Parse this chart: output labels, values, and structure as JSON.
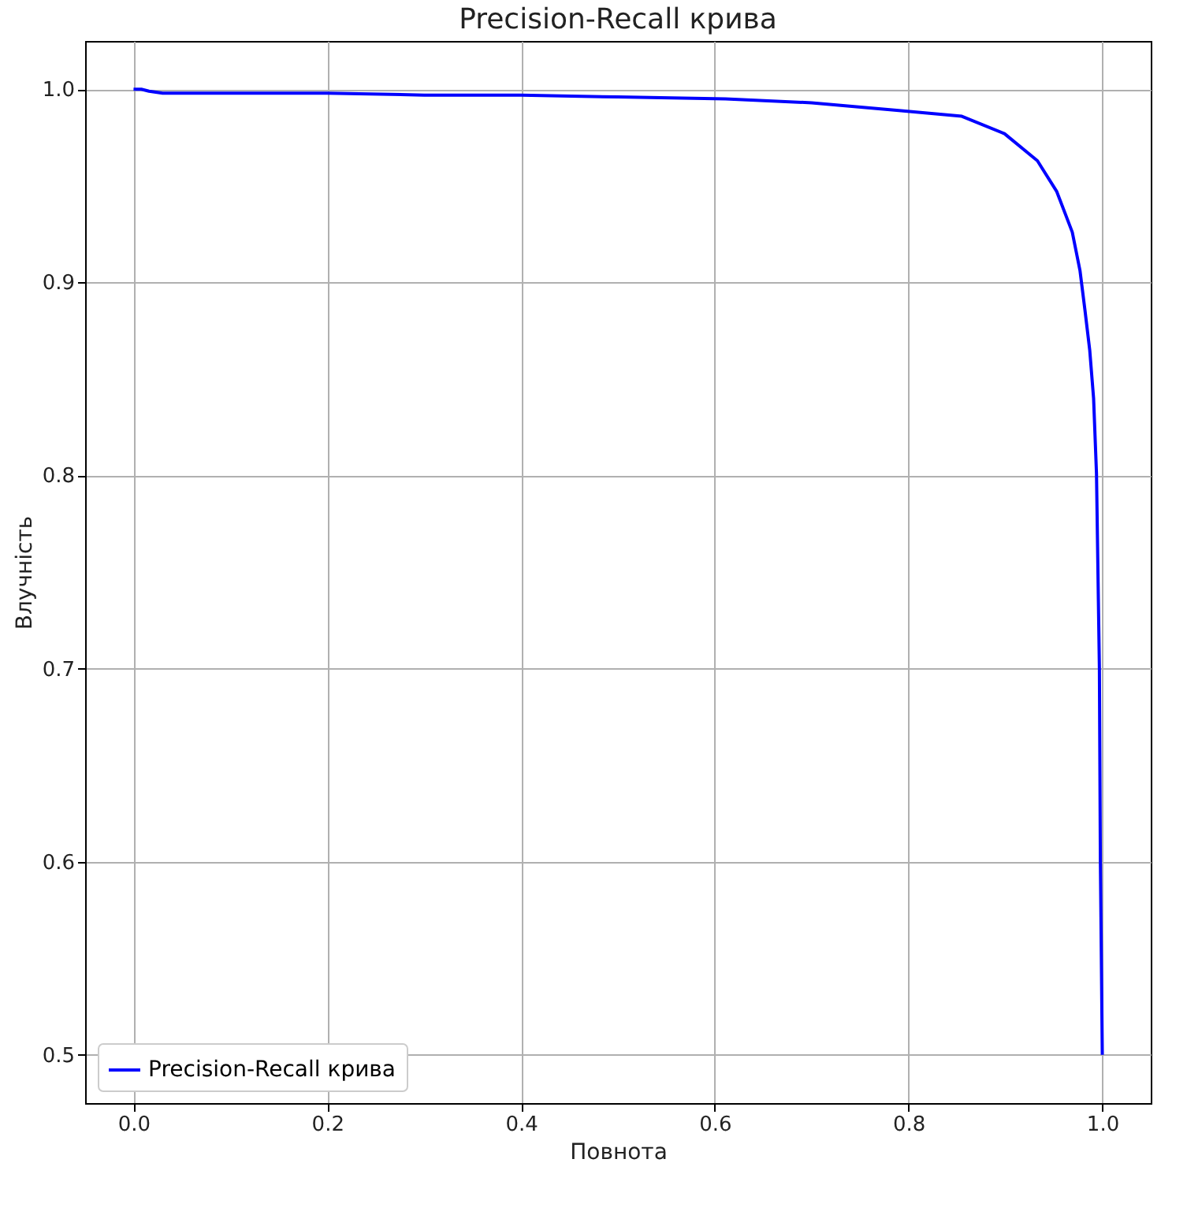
{
  "chart_data": {
    "type": "line",
    "title": "Precision-Recall крива",
    "xlabel": "Повнота",
    "ylabel": "Влучність",
    "x": [
      0,
      0.008,
      0.016,
      0.03,
      0.057,
      0.1,
      0.2,
      0.3,
      0.4,
      0.5,
      0.611,
      0.7,
      0.79,
      0.855,
      0.899,
      0.933,
      0.953,
      0.969,
      0.977,
      0.982,
      0.987,
      0.991,
      0.994,
      0.997,
      0.998,
      1.0
    ],
    "series": [
      {
        "name": "Precision-Recall крива",
        "color": "#0000ff",
        "values": [
          1.0,
          1.0,
          0.999,
          0.998,
          0.998,
          0.998,
          0.998,
          0.997,
          0.997,
          0.996,
          0.995,
          0.993,
          0.989,
          0.986,
          0.977,
          0.963,
          0.947,
          0.926,
          0.906,
          0.886,
          0.865,
          0.84,
          0.801,
          0.7,
          0.601,
          0.5
        ]
      }
    ],
    "xlim": [
      -0.05,
      1.05
    ],
    "ylim": [
      0.475,
      1.025
    ],
    "xticks": [
      {
        "value": 0,
        "label": "0.0"
      },
      0.2,
      0.4,
      0.6,
      0.8,
      {
        "value": 1,
        "label": "1.0"
      }
    ],
    "yticks": [
      0.5,
      0.6,
      0.7,
      0.8,
      0.9,
      {
        "value": 1,
        "label": "1.0"
      }
    ],
    "grid": true,
    "legend": "bottom left",
    "line_style": "solid",
    "marker": "none"
  }
}
